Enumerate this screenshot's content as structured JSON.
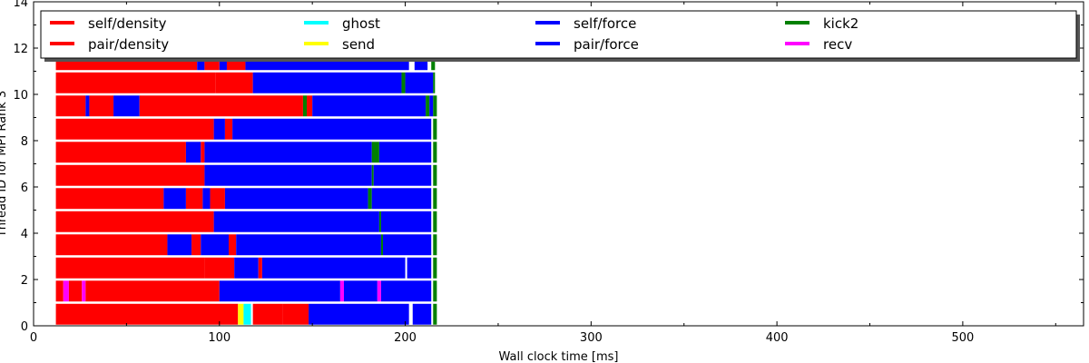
{
  "chart_data": {
    "type": "bar",
    "orientation": "horizontal-gantt",
    "title": "",
    "xlabel": "Wall clock time [ms]",
    "ylabel": "Thread ID for MPI Rank 3",
    "xlim": [
      0,
      565
    ],
    "ylim": [
      0,
      14
    ],
    "xticks": [
      0,
      100,
      200,
      300,
      400,
      500
    ],
    "yticks": [
      0,
      2,
      4,
      6,
      8,
      10,
      12,
      14
    ],
    "grid": false,
    "legend_placement": "top",
    "legend": [
      {
        "label": "self/density",
        "color": "#ff0000"
      },
      {
        "label": "pair/density",
        "color": "#ff0000"
      },
      {
        "label": "ghost",
        "color": "#00ffff"
      },
      {
        "label": "send",
        "color": "#ffff00"
      },
      {
        "label": "self/force",
        "color": "#0000ff"
      },
      {
        "label": "pair/force",
        "color": "#0000ff"
      },
      {
        "label": "kick2",
        "color": "#008000"
      },
      {
        "label": "recv",
        "color": "#ff00ff"
      }
    ],
    "threads": [
      {
        "id": 0,
        "segments": [
          {
            "task": "pair/density",
            "start": 12,
            "end": 110
          },
          {
            "task": "send",
            "start": 110,
            "end": 113
          },
          {
            "task": "ghost",
            "start": 113,
            "end": 117
          },
          {
            "task": "pair/density",
            "start": 118,
            "end": 134
          },
          {
            "task": "pair/density",
            "start": 134,
            "end": 148
          },
          {
            "task": "pair/force",
            "start": 148,
            "end": 202
          },
          {
            "task": "pair/force",
            "start": 204,
            "end": 214
          },
          {
            "task": "kick2",
            "start": 215,
            "end": 217
          }
        ]
      },
      {
        "id": 1,
        "segments": [
          {
            "task": "pair/density",
            "start": 12,
            "end": 16
          },
          {
            "task": "recv",
            "start": 16,
            "end": 19
          },
          {
            "task": "pair/density",
            "start": 19,
            "end": 26
          },
          {
            "task": "recv",
            "start": 26,
            "end": 28
          },
          {
            "task": "pair/density",
            "start": 28,
            "end": 100
          },
          {
            "task": "pair/force",
            "start": 100,
            "end": 165
          },
          {
            "task": "recv",
            "start": 165,
            "end": 167
          },
          {
            "task": "pair/force",
            "start": 167,
            "end": 185
          },
          {
            "task": "recv",
            "start": 185,
            "end": 187
          },
          {
            "task": "pair/force",
            "start": 187,
            "end": 214
          },
          {
            "task": "kick2",
            "start": 215,
            "end": 217
          }
        ]
      },
      {
        "id": 2,
        "segments": [
          {
            "task": "pair/density",
            "start": 12,
            "end": 92
          },
          {
            "task": "pair/density",
            "start": 92,
            "end": 108
          },
          {
            "task": "pair/force",
            "start": 108,
            "end": 121
          },
          {
            "task": "pair/density",
            "start": 121,
            "end": 123
          },
          {
            "task": "pair/force",
            "start": 123,
            "end": 200
          },
          {
            "task": "pair/force",
            "start": 201,
            "end": 214
          },
          {
            "task": "kick2",
            "start": 215,
            "end": 217
          }
        ]
      },
      {
        "id": 3,
        "segments": [
          {
            "task": "pair/density",
            "start": 12,
            "end": 72
          },
          {
            "task": "pair/force",
            "start": 72,
            "end": 85
          },
          {
            "task": "pair/density",
            "start": 85,
            "end": 90
          },
          {
            "task": "pair/force",
            "start": 90,
            "end": 105
          },
          {
            "task": "pair/density",
            "start": 105,
            "end": 109
          },
          {
            "task": "pair/force",
            "start": 109,
            "end": 187
          },
          {
            "task": "kick2",
            "start": 187,
            "end": 188
          },
          {
            "task": "pair/force",
            "start": 188,
            "end": 214
          },
          {
            "task": "kick2",
            "start": 215,
            "end": 217
          }
        ]
      },
      {
        "id": 4,
        "segments": [
          {
            "task": "pair/density",
            "start": 12,
            "end": 97
          },
          {
            "task": "pair/force",
            "start": 97,
            "end": 186
          },
          {
            "task": "kick2",
            "start": 186,
            "end": 187
          },
          {
            "task": "pair/force",
            "start": 187,
            "end": 214
          },
          {
            "task": "kick2",
            "start": 215,
            "end": 217
          }
        ]
      },
      {
        "id": 5,
        "segments": [
          {
            "task": "pair/density",
            "start": 12,
            "end": 70
          },
          {
            "task": "pair/force",
            "start": 70,
            "end": 82
          },
          {
            "task": "pair/density",
            "start": 82,
            "end": 91
          },
          {
            "task": "pair/force",
            "start": 91,
            "end": 95
          },
          {
            "task": "pair/density",
            "start": 95,
            "end": 103
          },
          {
            "task": "pair/force",
            "start": 103,
            "end": 180
          },
          {
            "task": "kick2",
            "start": 180,
            "end": 182
          },
          {
            "task": "pair/force",
            "start": 182,
            "end": 214
          },
          {
            "task": "kick2",
            "start": 215,
            "end": 217
          }
        ]
      },
      {
        "id": 6,
        "segments": [
          {
            "task": "pair/density",
            "start": 12,
            "end": 92
          },
          {
            "task": "pair/force",
            "start": 92,
            "end": 182
          },
          {
            "task": "kick2",
            "start": 182,
            "end": 183
          },
          {
            "task": "pair/force",
            "start": 183,
            "end": 214
          },
          {
            "task": "kick2",
            "start": 215,
            "end": 217
          }
        ]
      },
      {
        "id": 7,
        "segments": [
          {
            "task": "pair/density",
            "start": 12,
            "end": 82
          },
          {
            "task": "pair/force",
            "start": 82,
            "end": 90
          },
          {
            "task": "pair/density",
            "start": 90,
            "end": 92
          },
          {
            "task": "pair/force",
            "start": 92,
            "end": 182
          },
          {
            "task": "kick2",
            "start": 182,
            "end": 186
          },
          {
            "task": "pair/force",
            "start": 186,
            "end": 214
          },
          {
            "task": "kick2",
            "start": 215,
            "end": 217
          }
        ]
      },
      {
        "id": 8,
        "segments": [
          {
            "task": "pair/density",
            "start": 12,
            "end": 97
          },
          {
            "task": "pair/force",
            "start": 97,
            "end": 103
          },
          {
            "task": "pair/density",
            "start": 103,
            "end": 107
          },
          {
            "task": "pair/force",
            "start": 107,
            "end": 214
          },
          {
            "task": "kick2",
            "start": 215,
            "end": 217
          }
        ]
      },
      {
        "id": 9,
        "segments": [
          {
            "task": "pair/density",
            "start": 12,
            "end": 28
          },
          {
            "task": "pair/force",
            "start": 28,
            "end": 30
          },
          {
            "task": "pair/density",
            "start": 30,
            "end": 43
          },
          {
            "task": "pair/force",
            "start": 43,
            "end": 57
          },
          {
            "task": "pair/density",
            "start": 57,
            "end": 145
          },
          {
            "task": "kick2",
            "start": 145,
            "end": 147
          },
          {
            "task": "pair/density",
            "start": 147,
            "end": 150
          },
          {
            "task": "pair/force",
            "start": 150,
            "end": 211
          },
          {
            "task": "kick2",
            "start": 211,
            "end": 213
          },
          {
            "task": "pair/force",
            "start": 213,
            "end": 215
          },
          {
            "task": "kick2",
            "start": 215,
            "end": 217
          }
        ]
      },
      {
        "id": 10,
        "segments": [
          {
            "task": "pair/density",
            "start": 12,
            "end": 98
          },
          {
            "task": "pair/density",
            "start": 98,
            "end": 118
          },
          {
            "task": "pair/force",
            "start": 118,
            "end": 198
          },
          {
            "task": "kick2",
            "start": 198,
            "end": 200
          },
          {
            "task": "pair/force",
            "start": 200,
            "end": 215
          },
          {
            "task": "kick2",
            "start": 215,
            "end": 216
          }
        ]
      },
      {
        "id": 11,
        "segments": [
          {
            "task": "pair/density",
            "start": 12,
            "end": 88
          },
          {
            "task": "pair/force",
            "start": 88,
            "end": 92
          },
          {
            "task": "pair/density",
            "start": 92,
            "end": 100
          },
          {
            "task": "pair/force",
            "start": 100,
            "end": 104
          },
          {
            "task": "pair/density",
            "start": 104,
            "end": 114
          },
          {
            "task": "pair/force",
            "start": 114,
            "end": 202
          },
          {
            "task": "pair/force",
            "start": 205,
            "end": 212
          },
          {
            "task": "kick2",
            "start": 214,
            "end": 216
          }
        ]
      }
    ]
  }
}
